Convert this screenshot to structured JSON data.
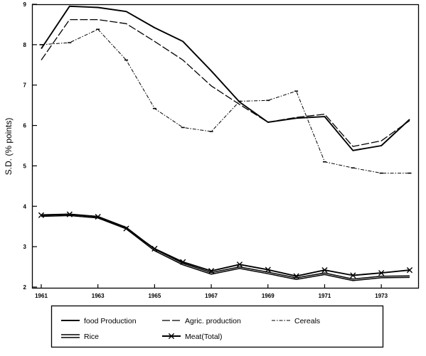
{
  "chart_data": {
    "type": "line",
    "title": "",
    "xlabel": "",
    "ylabel": "S.D. (% points)",
    "x": [
      1961,
      1962,
      1963,
      1964,
      1965,
      1966,
      1967,
      1968,
      1969,
      1970,
      1971,
      1972,
      1973,
      1974
    ],
    "x_ticks": [
      "1961",
      "1963",
      "1965",
      "1967",
      "1969",
      "1971",
      "1973"
    ],
    "y_ticks": [
      "2",
      "3",
      "4",
      "5",
      "6",
      "7",
      "8",
      "9"
    ],
    "xlim": [
      1961,
      1974
    ],
    "ylim": [
      2,
      9
    ],
    "grid": false,
    "legend_position": "bottom",
    "legend_layout": [
      [
        "food Production",
        "Agric. production",
        "Cereals"
      ],
      [
        "Rice",
        "Meat(Total)"
      ]
    ],
    "series": [
      {
        "name": "food Production",
        "style": "solid",
        "marker": "none",
        "values": [
          7.9,
          8.95,
          8.92,
          8.82,
          8.42,
          8.08,
          7.35,
          6.58,
          6.08,
          6.18,
          6.22,
          5.38,
          5.5,
          6.15
        ]
      },
      {
        "name": "Agric. production",
        "style": "longdash",
        "marker": "none",
        "values": [
          7.62,
          8.62,
          8.62,
          8.52,
          8.08,
          7.62,
          6.98,
          6.52,
          6.08,
          6.2,
          6.28,
          5.48,
          5.62,
          6.12
        ]
      },
      {
        "name": "Cereals",
        "style": "dashdot",
        "marker": "bar",
        "values": [
          8.0,
          8.05,
          8.38,
          7.62,
          6.42,
          5.95,
          5.85,
          6.6,
          6.62,
          6.85,
          5.1,
          4.95,
          4.82,
          4.82
        ]
      },
      {
        "name": "Rice",
        "style": "double",
        "marker": "none",
        "values": [
          3.75,
          3.77,
          3.71,
          3.44,
          2.9,
          2.55,
          2.32,
          2.46,
          2.33,
          2.19,
          2.31,
          2.16,
          2.23,
          2.24
        ]
      },
      {
        "name": "Meat(Total)",
        "style": "solid",
        "marker": "x",
        "values": [
          3.78,
          3.8,
          3.74,
          3.45,
          2.95,
          2.62,
          2.4,
          2.56,
          2.43,
          2.27,
          2.42,
          2.29,
          2.35,
          2.42
        ]
      }
    ]
  }
}
